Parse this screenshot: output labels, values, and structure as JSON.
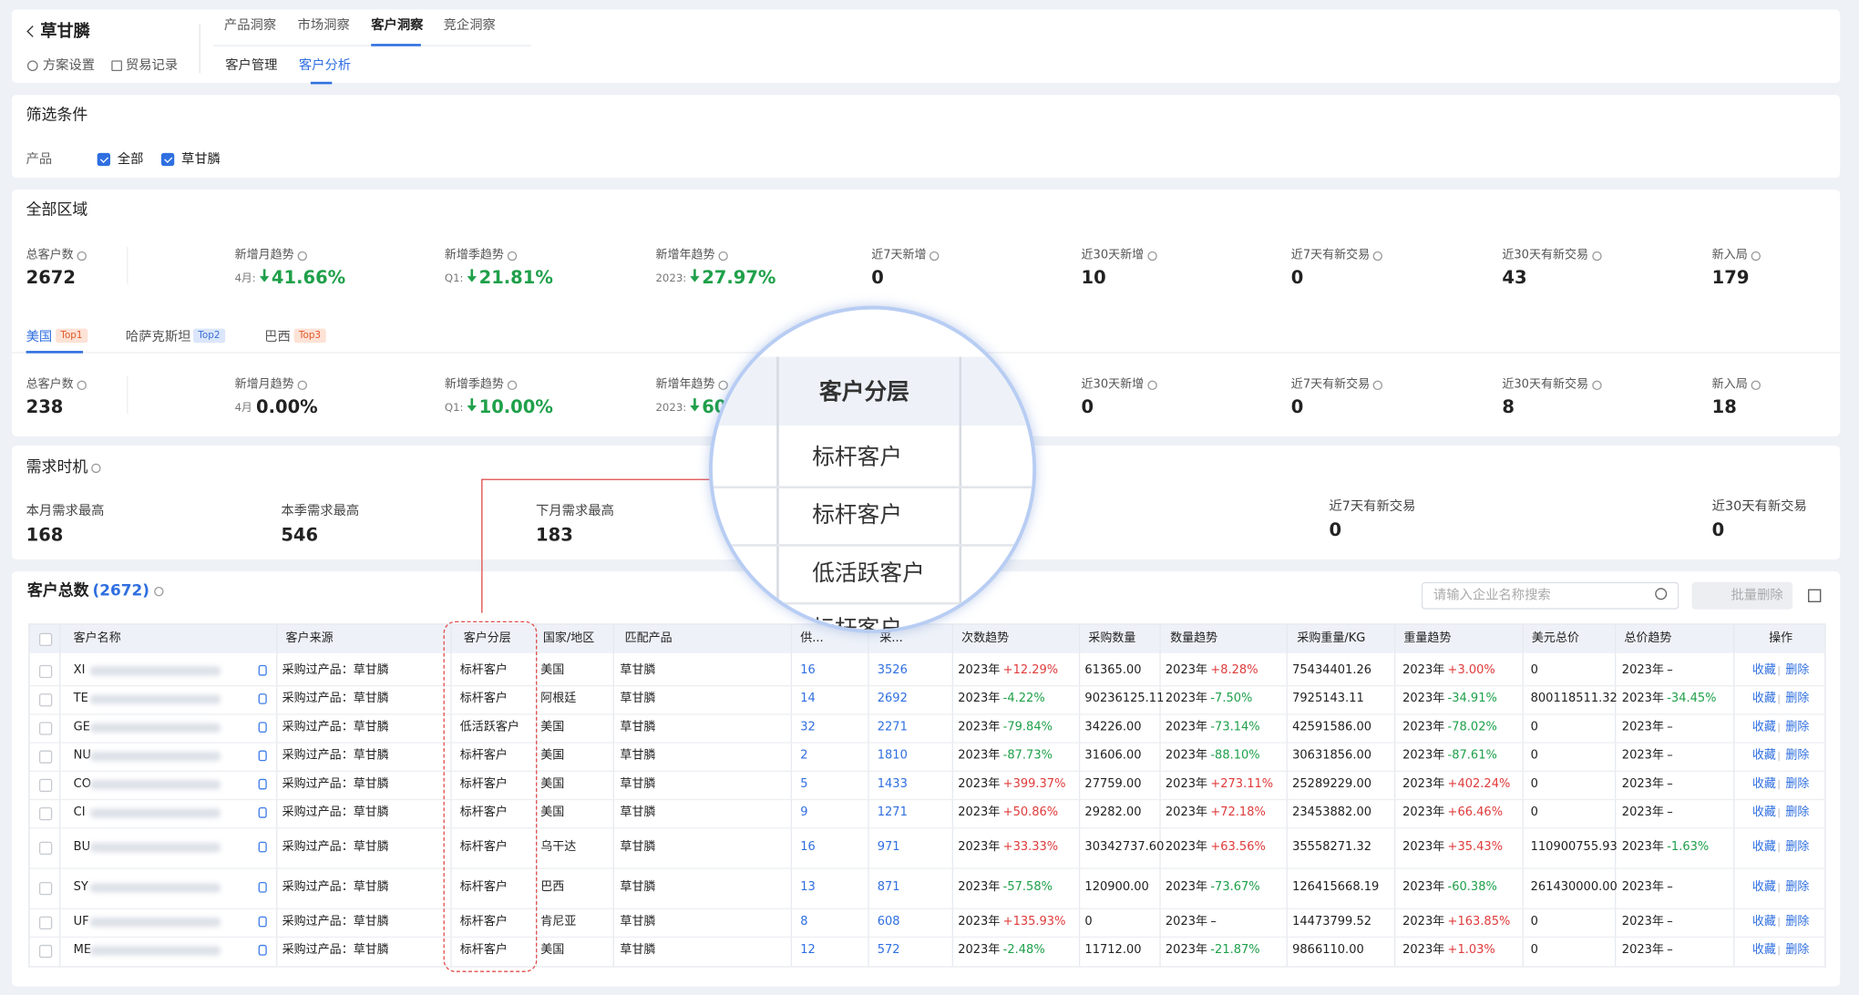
{
  "header": {
    "title": "草甘膦",
    "links": [
      "方案设置",
      "贸易记录"
    ],
    "tabs": [
      "产品洞察",
      "市场洞察",
      "客户洞察",
      "竞企洞察"
    ],
    "subtabs": [
      "客户管理",
      "客户分析"
    ]
  },
  "filter": {
    "title": "筛选条件",
    "label": "产品",
    "options": [
      "全部",
      "草甘膦"
    ]
  },
  "region": {
    "title": "全部区域",
    "stats": [
      {
        "label": "总客户数",
        "value": "2672"
      },
      {
        "label": "新增月趋势",
        "prefix": "4月:",
        "value": "41.66%",
        "color": "#1fa04a"
      },
      {
        "label": "新增季趋势",
        "prefix": "Q1:",
        "value": "21.81%",
        "color": "#1fa04a"
      },
      {
        "label": "新增年趋势",
        "prefix": "2023:",
        "value": "27.97%",
        "color": "#1fa04a"
      },
      {
        "label": "近7天新增",
        "value": "0"
      },
      {
        "label": "近30天新增",
        "value": "10"
      },
      {
        "label": "近7天有新交易",
        "value": "0"
      },
      {
        "label": "近30天有新交易",
        "value": "43"
      },
      {
        "label": "新入局",
        "value": "179"
      }
    ]
  },
  "country": {
    "tabs": [
      {
        "name": "美国",
        "badge": "Top1"
      },
      {
        "name": "哈萨克斯坦",
        "badge": "Top2"
      },
      {
        "name": "巴西",
        "badge": "Top3"
      }
    ],
    "stats": [
      {
        "label": "总客户数",
        "value": "238"
      },
      {
        "label": "新增月趋势",
        "prefix": "4月",
        "value": "0.00%"
      },
      {
        "label": "新增季趋势",
        "prefix": "Q1:",
        "value": "10.00%",
        "color": "#1fa04a"
      },
      {
        "label": "新增年趋势",
        "prefix": "2023:",
        "value": "60",
        "color": "#1fa04a"
      },
      {
        "label": "近30天新增",
        "value": "0"
      },
      {
        "label": "近7天有新交易",
        "value": "0"
      },
      {
        "label": "近30天有新交易",
        "value": "8"
      },
      {
        "label": "新入局",
        "value": "18"
      }
    ]
  },
  "demand": {
    "title": "需求时机",
    "items": [
      {
        "label": "本月需求最高",
        "value": "168"
      },
      {
        "label": "本季需求最高",
        "value": "546"
      },
      {
        "label": "下月需求最高",
        "value": "183"
      },
      {
        "label": "近7天有新交易",
        "value": "0"
      },
      {
        "label": "近30天有新交易",
        "value": "0"
      }
    ]
  },
  "table": {
    "title": "客户总数",
    "count": "(2672)",
    "search_placeholder": "请输入企业名称搜索",
    "batch_delete": "批量删除",
    "columns": [
      "客户名称",
      "客户来源",
      "客户分层",
      "国家/地区",
      "匹配产品",
      "供...",
      "采...",
      "次数趋势",
      "采购数量",
      "数量趋势",
      "采购重量/KG",
      "重量趋势",
      "美元总价",
      "总价趋势",
      "操作"
    ],
    "trend_prefix": "2023年",
    "actions": [
      "收藏",
      "删除"
    ],
    "rows": [
      [
        "XI",
        "采购过产品：草甘膦",
        "标杆客户",
        "美国",
        "草甘膦",
        "16",
        "3526",
        "+12.29%",
        "61365.00",
        "+8.28%",
        "75434401.26",
        "+3.00%",
        "0",
        "–"
      ],
      [
        "TE",
        "采购过产品：草甘膦",
        "标杆客户",
        "阿根廷",
        "草甘膦",
        "14",
        "2692",
        "-4.22%",
        "90236125.11",
        "-7.50%",
        "7925143.11",
        "-34.91%",
        "800118511.32",
        "-34.45%"
      ],
      [
        "GE",
        "采购过产品：草甘膦",
        "低活跃客户",
        "美国",
        "草甘膦",
        "32",
        "2271",
        "-79.84%",
        "34226.00",
        "-73.14%",
        "42591586.00",
        "-78.02%",
        "0",
        "–"
      ],
      [
        "NU",
        "采购过产品：草甘膦",
        "标杆客户",
        "美国",
        "草甘膦",
        "2",
        "1810",
        "-87.73%",
        "31606.00",
        "-88.10%",
        "30631856.00",
        "-87.61%",
        "0",
        "–"
      ],
      [
        "CO",
        "采购过产品：草甘膦",
        "标杆客户",
        "美国",
        "草甘膦",
        "5",
        "1433",
        "+399.37%",
        "27759.00",
        "+273.11%",
        "25289229.00",
        "+402.24%",
        "0",
        "–"
      ],
      [
        "CI",
        "采购过产品：草甘膦",
        "标杆客户",
        "美国",
        "草甘膦",
        "9",
        "1271",
        "+50.86%",
        "29282.00",
        "+72.18%",
        "23453882.00",
        "+66.46%",
        "0",
        "–"
      ],
      [
        "BU",
        "采购过产品：草甘膦",
        "标杆客户",
        "乌干达",
        "草甘膦",
        "16",
        "971",
        "+33.33%",
        "30342737.60",
        "+63.56%",
        "35558271.32",
        "+35.43%",
        "110900755.93",
        "-1.63%"
      ],
      [
        "SY",
        "采购过产品：草甘膦",
        "标杆客户",
        "巴西",
        "草甘膦",
        "13",
        "871",
        "-57.58%",
        "120900.00",
        "-73.67%",
        "126415668.19",
        "-60.38%",
        "261430000.00",
        "–"
      ],
      [
        "UF",
        "采购过产品：草甘膦",
        "标杆客户",
        "肯尼亚",
        "草甘膦",
        "8",
        "608",
        "+135.93%",
        "0",
        "–",
        "14473799.52",
        "+163.85%",
        "0",
        "–"
      ],
      [
        "ME",
        "采购过产品：草甘膦",
        "标杆客户",
        "美国",
        "草甘膦",
        "12",
        "572",
        "-2.48%",
        "11712.00",
        "-21.87%",
        "9866110.00",
        "+1.03%",
        "0",
        "–"
      ]
    ]
  }
}
